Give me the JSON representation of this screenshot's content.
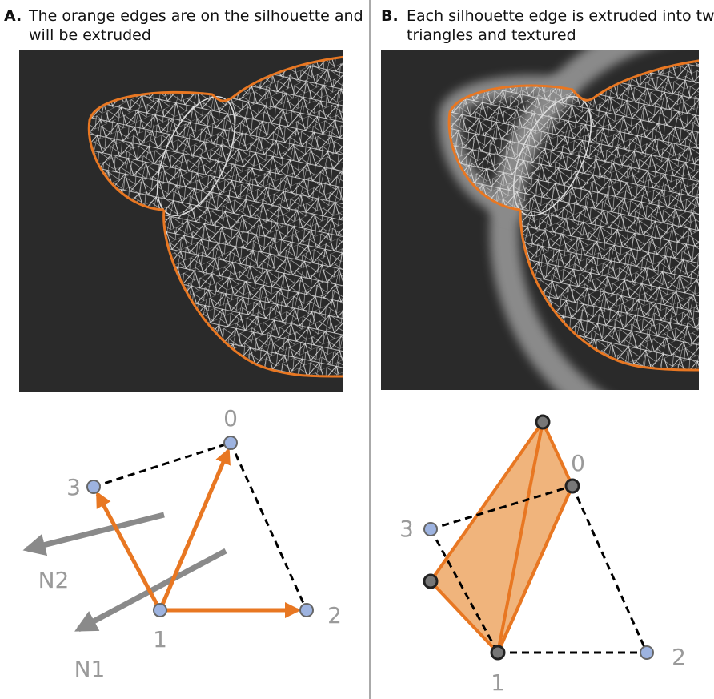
{
  "panels": [
    {
      "label": "A.",
      "caption_lines": [
        "The orange edges are on the silhouette and",
        "will be extruded"
      ],
      "diagram": {
        "vertices": [
          "0",
          "1",
          "2",
          "3"
        ],
        "normals": [
          "N2",
          "N1"
        ]
      }
    },
    {
      "label": "B.",
      "caption_lines": [
        "Each silhouette edge is extruded into two",
        "triangles and textured"
      ],
      "diagram": {
        "vertices": [
          "0",
          "1",
          "2",
          "3"
        ]
      }
    }
  ]
}
